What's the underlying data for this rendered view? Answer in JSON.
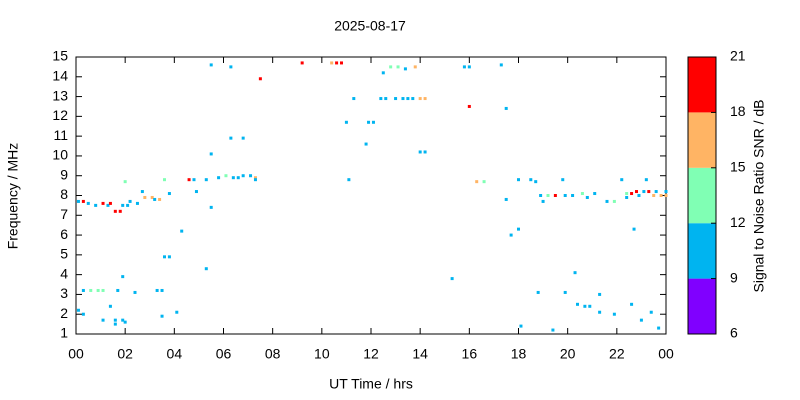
{
  "chart_data": {
    "type": "scatter",
    "title": "2025-08-17",
    "x_label": "UT Time / hrs",
    "y_label": "Frequency / MHz",
    "xlim": [
      0,
      24
    ],
    "xticks": [
      {
        "value": 0,
        "label": "00"
      },
      {
        "value": 2,
        "label": "02"
      },
      {
        "value": 4,
        "label": "04"
      },
      {
        "value": 6,
        "label": "06"
      },
      {
        "value": 8,
        "label": "08"
      },
      10,
      12,
      14,
      16,
      18,
      20,
      22,
      {
        "value": 24,
        "label": "00"
      }
    ],
    "ylim": [
      1,
      15
    ],
    "yticks": [
      1,
      2,
      3,
      4,
      5,
      6,
      7,
      8,
      9,
      10,
      11,
      12,
      13,
      14,
      15
    ],
    "colorbar": {
      "label": "Signal to Noise Ratio SNR / dB",
      "lim": [
        6,
        21
      ],
      "ticks": [
        6,
        9,
        12,
        15,
        18,
        21
      ],
      "colors": [
        "#8000ff",
        "#00b4f0",
        "#80ffb4",
        "#ffb464",
        "#ff0000"
      ]
    },
    "x": [
      0.1,
      0.3,
      0.5,
      0.8,
      1.1,
      1.3,
      1.4,
      1.6,
      1.8,
      1.9,
      2.1,
      2.2,
      2.5,
      2.7,
      2.8,
      3.1,
      3.2,
      3.4,
      3.6,
      2.0,
      3.8,
      4.6,
      4.8,
      4.9,
      5.3,
      0.1,
      0.3,
      0.3,
      0.6,
      0.9,
      1.1,
      1.1,
      1.4,
      1.6,
      1.6,
      1.7,
      1.9,
      1.9,
      2.0,
      2.4,
      3.3,
      3.5,
      3.5,
      3.6,
      3.8,
      4.1,
      4.3,
      5.3,
      5.5,
      5.5,
      5.5,
      6.3,
      5.8,
      6.1,
      6.4,
      6.6,
      6.8,
      7.1,
      7.3,
      7.3,
      6.3,
      6.8,
      7.5,
      9.2,
      10.4,
      10.6,
      10.8,
      11.0,
      11.1,
      11.3,
      11.8,
      11.9,
      12.1,
      12.4,
      12.6,
      12.5,
      12.8,
      13.0,
      13.1,
      13.3,
      13.4,
      13.5,
      13.7,
      13.8,
      14.0,
      14.2,
      14.0,
      14.2,
      15.3,
      15.8,
      16.0,
      16.0,
      16.3,
      16.6,
      17.3,
      17.5,
      17.5,
      17.7,
      18.0,
      18.0,
      18.1,
      18.5,
      18.7,
      18.8,
      18.9,
      19.0,
      19.2,
      19.4,
      19.5,
      19.8,
      19.9,
      19.9,
      20.2,
      20.3,
      20.4,
      20.6,
      20.7,
      20.8,
      20.9,
      21.1,
      21.3,
      21.3,
      21.6,
      21.9,
      21.9,
      22.2,
      22.4,
      22.4,
      22.6,
      22.7,
      22.6,
      22.8,
      22.9,
      23.0,
      23.1,
      23.2,
      23.3,
      23.4,
      23.5,
      23.6,
      23.8,
      23.7,
      24.0,
      24.0
    ],
    "values": [
      7.7,
      7.7,
      7.6,
      7.5,
      7.6,
      7.5,
      7.6,
      7.2,
      7.2,
      7.5,
      7.5,
      7.7,
      7.6,
      8.2,
      7.9,
      7.9,
      7.8,
      7.8,
      8.8,
      8.7,
      8.1,
      8.8,
      8.8,
      8.2,
      8.8,
      2.2,
      2.0,
      3.2,
      3.2,
      3.2,
      3.2,
      1.7,
      2.4,
      1.7,
      1.5,
      3.2,
      1.7,
      3.9,
      1.6,
      3.1,
      3.2,
      3.2,
      1.9,
      4.9,
      4.9,
      2.1,
      6.2,
      4.3,
      7.4,
      10.1,
      14.6,
      14.5,
      8.9,
      9.0,
      8.9,
      8.9,
      9.0,
      9.0,
      8.9,
      8.8,
      10.9,
      10.9,
      13.9,
      14.7,
      14.7,
      14.7,
      14.7,
      11.7,
      8.8,
      12.9,
      10.6,
      11.7,
      11.7,
      12.9,
      12.9,
      14.2,
      14.5,
      12.9,
      14.5,
      12.9,
      14.4,
      12.9,
      12.9,
      14.5,
      12.9,
      12.9,
      10.2,
      10.2,
      3.8,
      14.5,
      14.5,
      12.5,
      8.7,
      8.7,
      14.6,
      12.4,
      7.8,
      6.0,
      6.3,
      8.8,
      1.4,
      8.8,
      8.7,
      3.1,
      8.0,
      7.7,
      8.0,
      1.2,
      8.0,
      8.8,
      8.0,
      3.1,
      8.0,
      4.1,
      2.5,
      8.1,
      2.4,
      7.9,
      2.4,
      8.1,
      3.0,
      2.1,
      7.7,
      2.0,
      7.7,
      8.8,
      8.1,
      7.9,
      8.1,
      6.3,
      2.5,
      8.2,
      8.0,
      1.7,
      8.2,
      8.8,
      8.2,
      2.1,
      8.0,
      8.2,
      8.0,
      1.3,
      8.2,
      8.0
    ],
    "snr": [
      10,
      19,
      10,
      10,
      19,
      10,
      19,
      19,
      19,
      10,
      10,
      10,
      10,
      10,
      16,
      16,
      10,
      16,
      13,
      13,
      10,
      19,
      10,
      10,
      10,
      10,
      10,
      10,
      13,
      13,
      13,
      10,
      10,
      10,
      10,
      10,
      10,
      10,
      10,
      10,
      10,
      10,
      10,
      10,
      10,
      10,
      10,
      10,
      10,
      10,
      10,
      10,
      10,
      13,
      10,
      10,
      10,
      10,
      16,
      10,
      10,
      10,
      19,
      19,
      16,
      19,
      19,
      10,
      10,
      10,
      10,
      10,
      10,
      10,
      10,
      10,
      13,
      10,
      13,
      10,
      10,
      10,
      10,
      16,
      16,
      16,
      10,
      10,
      10,
      10,
      10,
      19,
      16,
      13,
      10,
      10,
      10,
      10,
      10,
      10,
      10,
      10,
      10,
      10,
      10,
      10,
      13,
      10,
      19,
      10,
      10,
      10,
      10,
      10,
      10,
      13,
      10,
      10,
      10,
      10,
      10,
      10,
      10,
      10,
      13,
      10,
      13,
      10,
      19,
      10,
      10,
      19,
      10,
      10,
      10,
      10,
      19,
      10,
      16,
      10,
      16,
      10,
      10,
      16
    ]
  }
}
